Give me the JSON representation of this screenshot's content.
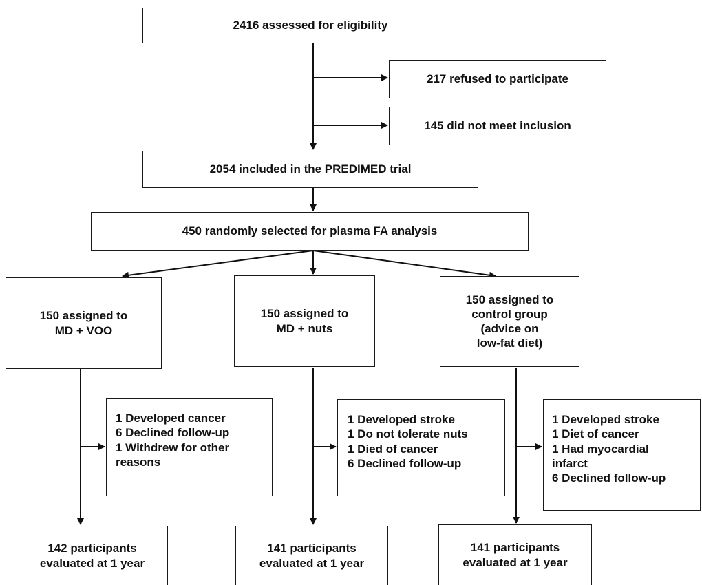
{
  "nodes": {
    "assessed": "2416 assessed for eligibility",
    "refused": "217 refused to participate",
    "not_meet": "145 did not meet inclusion",
    "included": "2054 included in the PREDIMED trial",
    "selected": "450 randomly selected for plasma FA analysis",
    "arm_voo": "150 assigned to\nMD + VOO",
    "arm_nuts": "150 assigned to\nMD + nuts",
    "arm_control": "150 assigned to\ncontrol group\n(advice on\nlow-fat diet)",
    "excl_voo": "1 Developed cancer\n6 Declined follow-up\n1 Withdrew for other\nreasons",
    "excl_nuts": "1 Developed stroke\n1 Do not tolerate nuts\n1 Died of cancer\n6 Declined follow-up",
    "excl_control": "1 Developed stroke\n1 Diet of cancer\n1 Had myocardial\ninfarct\n6 Declined follow-up",
    "final_voo": "142 participants\nevaluated at 1 year",
    "final_nuts": "141 participants\nevaluated at 1 year",
    "final_control": "141 participants\nevaluated at 1 year"
  }
}
